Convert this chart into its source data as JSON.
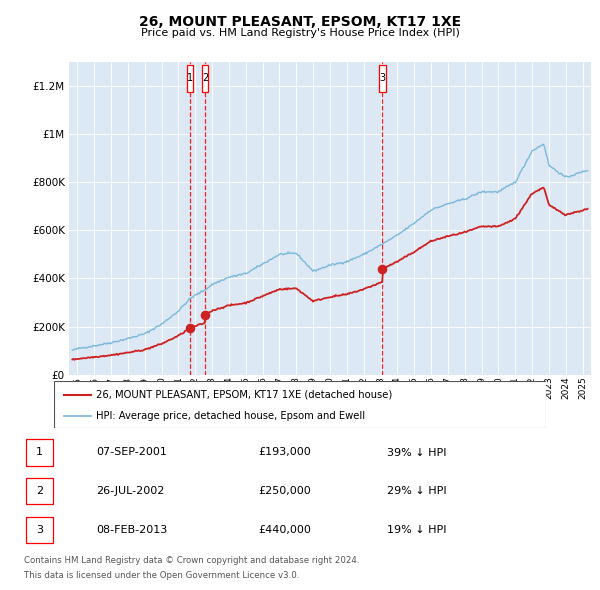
{
  "title": "26, MOUNT PLEASANT, EPSOM, KT17 1XE",
  "subtitle": "Price paid vs. HM Land Registry's House Price Index (HPI)",
  "legend_line1": "26, MOUNT PLEASANT, EPSOM, KT17 1XE (detached house)",
  "legend_line2": "HPI: Average price, detached house, Epsom and Ewell",
  "footnote1": "Contains HM Land Registry data © Crown copyright and database right 2024.",
  "footnote2": "This data is licensed under the Open Government Licence v3.0.",
  "transactions": [
    {
      "num": 1,
      "date": "07-SEP-2001",
      "price": 193000,
      "pct": "39%",
      "dir": "↓",
      "x_year": 2001.69
    },
    {
      "num": 2,
      "date": "26-JUL-2002",
      "price": 250000,
      "pct": "29%",
      "dir": "↓",
      "x_year": 2002.57
    },
    {
      "num": 3,
      "date": "08-FEB-2013",
      "price": 440000,
      "pct": "19%",
      "dir": "↓",
      "x_year": 2013.11
    }
  ],
  "hpi_color": "#7ab8d9",
  "price_color": "#cc2222",
  "bg_color": "#dde8f5",
  "ylim": [
    0,
    1300000
  ],
  "yticks": [
    0,
    200000,
    400000,
    600000,
    800000,
    1000000,
    1200000
  ],
  "xlim_start": 1994.5,
  "xlim_end": 2025.5
}
